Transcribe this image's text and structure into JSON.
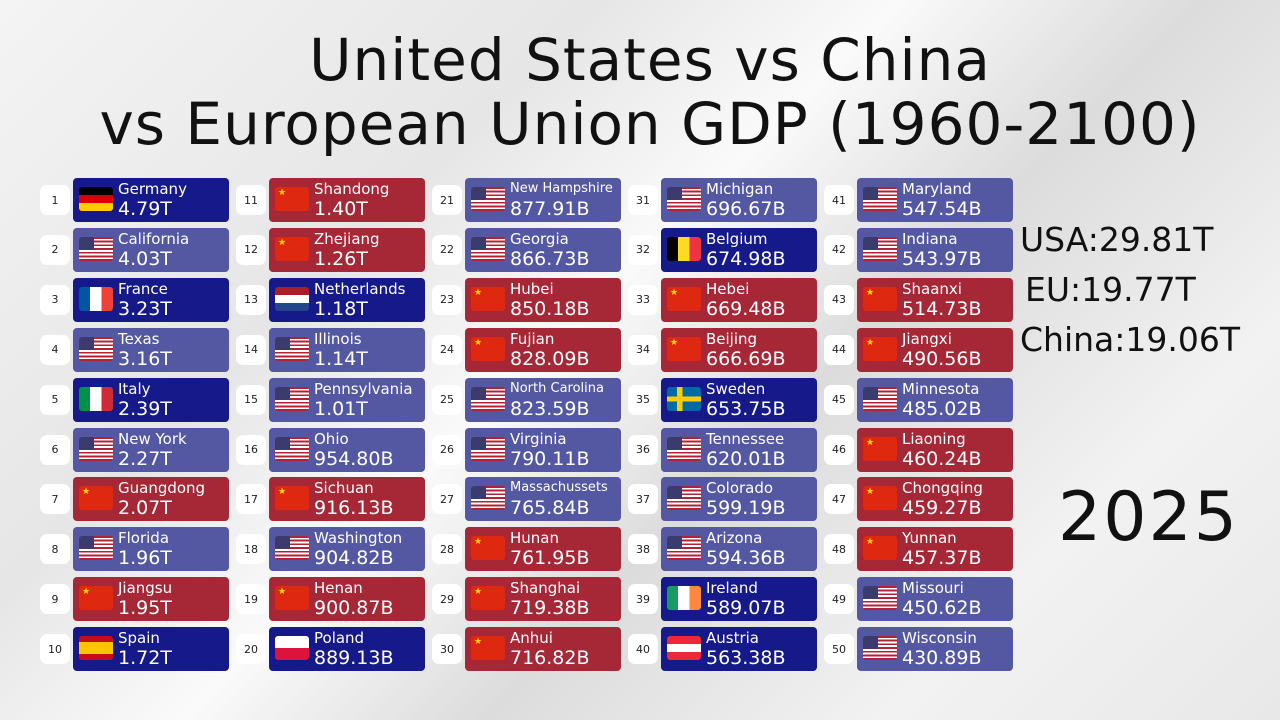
{
  "title_line1": "United States vs China",
  "title_line2": "vs European Union GDP (1960-2100)",
  "colors": {
    "EU": "#15198a",
    "USA": "#5458a3",
    "China": "#a62837"
  },
  "totals": [
    {
      "label": "USA:29.81T"
    },
    {
      "label": "EU:19.77T"
    },
    {
      "label": "China:19.06T"
    }
  ],
  "year": "2025",
  "entries": [
    {
      "rank": "1",
      "name": "Germany",
      "value": "4.79T",
      "group": "EU",
      "flag": "de"
    },
    {
      "rank": "2",
      "name": "California",
      "value": "4.03T",
      "group": "USA",
      "flag": "us"
    },
    {
      "rank": "3",
      "name": "France",
      "value": "3.23T",
      "group": "EU",
      "flag": "fr"
    },
    {
      "rank": "4",
      "name": "Texas",
      "value": "3.16T",
      "group": "USA",
      "flag": "us"
    },
    {
      "rank": "5",
      "name": "Italy",
      "value": "2.39T",
      "group": "EU",
      "flag": "it"
    },
    {
      "rank": "6",
      "name": "New York",
      "value": "2.27T",
      "group": "USA",
      "flag": "us"
    },
    {
      "rank": "7",
      "name": "Guangdong",
      "value": "2.07T",
      "group": "China",
      "flag": "cn"
    },
    {
      "rank": "8",
      "name": "Florida",
      "value": "1.96T",
      "group": "USA",
      "flag": "us"
    },
    {
      "rank": "9",
      "name": "Jiangsu",
      "value": "1.95T",
      "group": "China",
      "flag": "cn"
    },
    {
      "rank": "10",
      "name": "Spain",
      "value": "1.72T",
      "group": "EU",
      "flag": "es"
    },
    {
      "rank": "11",
      "name": "Shandong",
      "value": "1.40T",
      "group": "China",
      "flag": "cn"
    },
    {
      "rank": "12",
      "name": "Zhejiang",
      "value": "1.26T",
      "group": "China",
      "flag": "cn"
    },
    {
      "rank": "13",
      "name": "Netherlands",
      "value": "1.18T",
      "group": "EU",
      "flag": "nl"
    },
    {
      "rank": "14",
      "name": "Illinois",
      "value": "1.14T",
      "group": "USA",
      "flag": "us"
    },
    {
      "rank": "15",
      "name": "Pennsylvania",
      "value": "1.01T",
      "group": "USA",
      "flag": "us"
    },
    {
      "rank": "16",
      "name": "Ohio",
      "value": "954.80B",
      "group": "USA",
      "flag": "us"
    },
    {
      "rank": "17",
      "name": "Sichuan",
      "value": "916.13B",
      "group": "China",
      "flag": "cn"
    },
    {
      "rank": "18",
      "name": "Washington",
      "value": "904.82B",
      "group": "USA",
      "flag": "us"
    },
    {
      "rank": "19",
      "name": "Henan",
      "value": "900.87B",
      "group": "China",
      "flag": "cn"
    },
    {
      "rank": "20",
      "name": "Poland",
      "value": "889.13B",
      "group": "EU",
      "flag": "pl"
    },
    {
      "rank": "21",
      "name": "New Hampshire",
      "value": "877.91B",
      "group": "USA",
      "flag": "us"
    },
    {
      "rank": "22",
      "name": "Georgia",
      "value": "866.73B",
      "group": "USA",
      "flag": "us"
    },
    {
      "rank": "23",
      "name": "Hubei",
      "value": "850.18B",
      "group": "China",
      "flag": "cn"
    },
    {
      "rank": "24",
      "name": "Fujian",
      "value": "828.09B",
      "group": "China",
      "flag": "cn"
    },
    {
      "rank": "25",
      "name": "North Carolina",
      "value": "823.59B",
      "group": "USA",
      "flag": "us"
    },
    {
      "rank": "26",
      "name": "Virginia",
      "value": "790.11B",
      "group": "USA",
      "flag": "us"
    },
    {
      "rank": "27",
      "name": "Massachussets",
      "value": "765.84B",
      "group": "USA",
      "flag": "us"
    },
    {
      "rank": "28",
      "name": "Hunan",
      "value": "761.95B",
      "group": "China",
      "flag": "cn"
    },
    {
      "rank": "29",
      "name": "Shanghai",
      "value": "719.38B",
      "group": "China",
      "flag": "cn"
    },
    {
      "rank": "30",
      "name": "Anhui",
      "value": "716.82B",
      "group": "China",
      "flag": "cn"
    },
    {
      "rank": "31",
      "name": "Michigan",
      "value": "696.67B",
      "group": "USA",
      "flag": "us"
    },
    {
      "rank": "32",
      "name": "Belgium",
      "value": "674.98B",
      "group": "EU",
      "flag": "be"
    },
    {
      "rank": "33",
      "name": "Hebei",
      "value": "669.48B",
      "group": "China",
      "flag": "cn"
    },
    {
      "rank": "34",
      "name": "Beijing",
      "value": "666.69B",
      "group": "China",
      "flag": "cn"
    },
    {
      "rank": "35",
      "name": "Sweden",
      "value": "653.75B",
      "group": "EU",
      "flag": "se"
    },
    {
      "rank": "36",
      "name": "Tennessee",
      "value": "620.01B",
      "group": "USA",
      "flag": "us"
    },
    {
      "rank": "37",
      "name": "Colorado",
      "value": "599.19B",
      "group": "USA",
      "flag": "us"
    },
    {
      "rank": "38",
      "name": "Arizona",
      "value": "594.36B",
      "group": "USA",
      "flag": "us"
    },
    {
      "rank": "39",
      "name": "Ireland",
      "value": "589.07B",
      "group": "EU",
      "flag": "ie"
    },
    {
      "rank": "40",
      "name": "Austria",
      "value": "563.38B",
      "group": "EU",
      "flag": "at"
    },
    {
      "rank": "41",
      "name": "Maryland",
      "value": "547.54B",
      "group": "USA",
      "flag": "us"
    },
    {
      "rank": "42",
      "name": "Indiana",
      "value": "543.97B",
      "group": "USA",
      "flag": "us"
    },
    {
      "rank": "43",
      "name": "Shaanxi",
      "value": "514.73B",
      "group": "China",
      "flag": "cn"
    },
    {
      "rank": "44",
      "name": "Jiangxi",
      "value": "490.56B",
      "group": "China",
      "flag": "cn"
    },
    {
      "rank": "45",
      "name": "Minnesota",
      "value": "485.02B",
      "group": "USA",
      "flag": "us"
    },
    {
      "rank": "46",
      "name": "Liaoning",
      "value": "460.24B",
      "group": "China",
      "flag": "cn"
    },
    {
      "rank": "47",
      "name": "Chongqing",
      "value": "459.27B",
      "group": "China",
      "flag": "cn"
    },
    {
      "rank": "48",
      "name": "Yunnan",
      "value": "457.37B",
      "group": "China",
      "flag": "cn"
    },
    {
      "rank": "49",
      "name": "Missouri",
      "value": "450.62B",
      "group": "USA",
      "flag": "us"
    },
    {
      "rank": "50",
      "name": "Wisconsin",
      "value": "430.89B",
      "group": "USA",
      "flag": "us"
    }
  ]
}
